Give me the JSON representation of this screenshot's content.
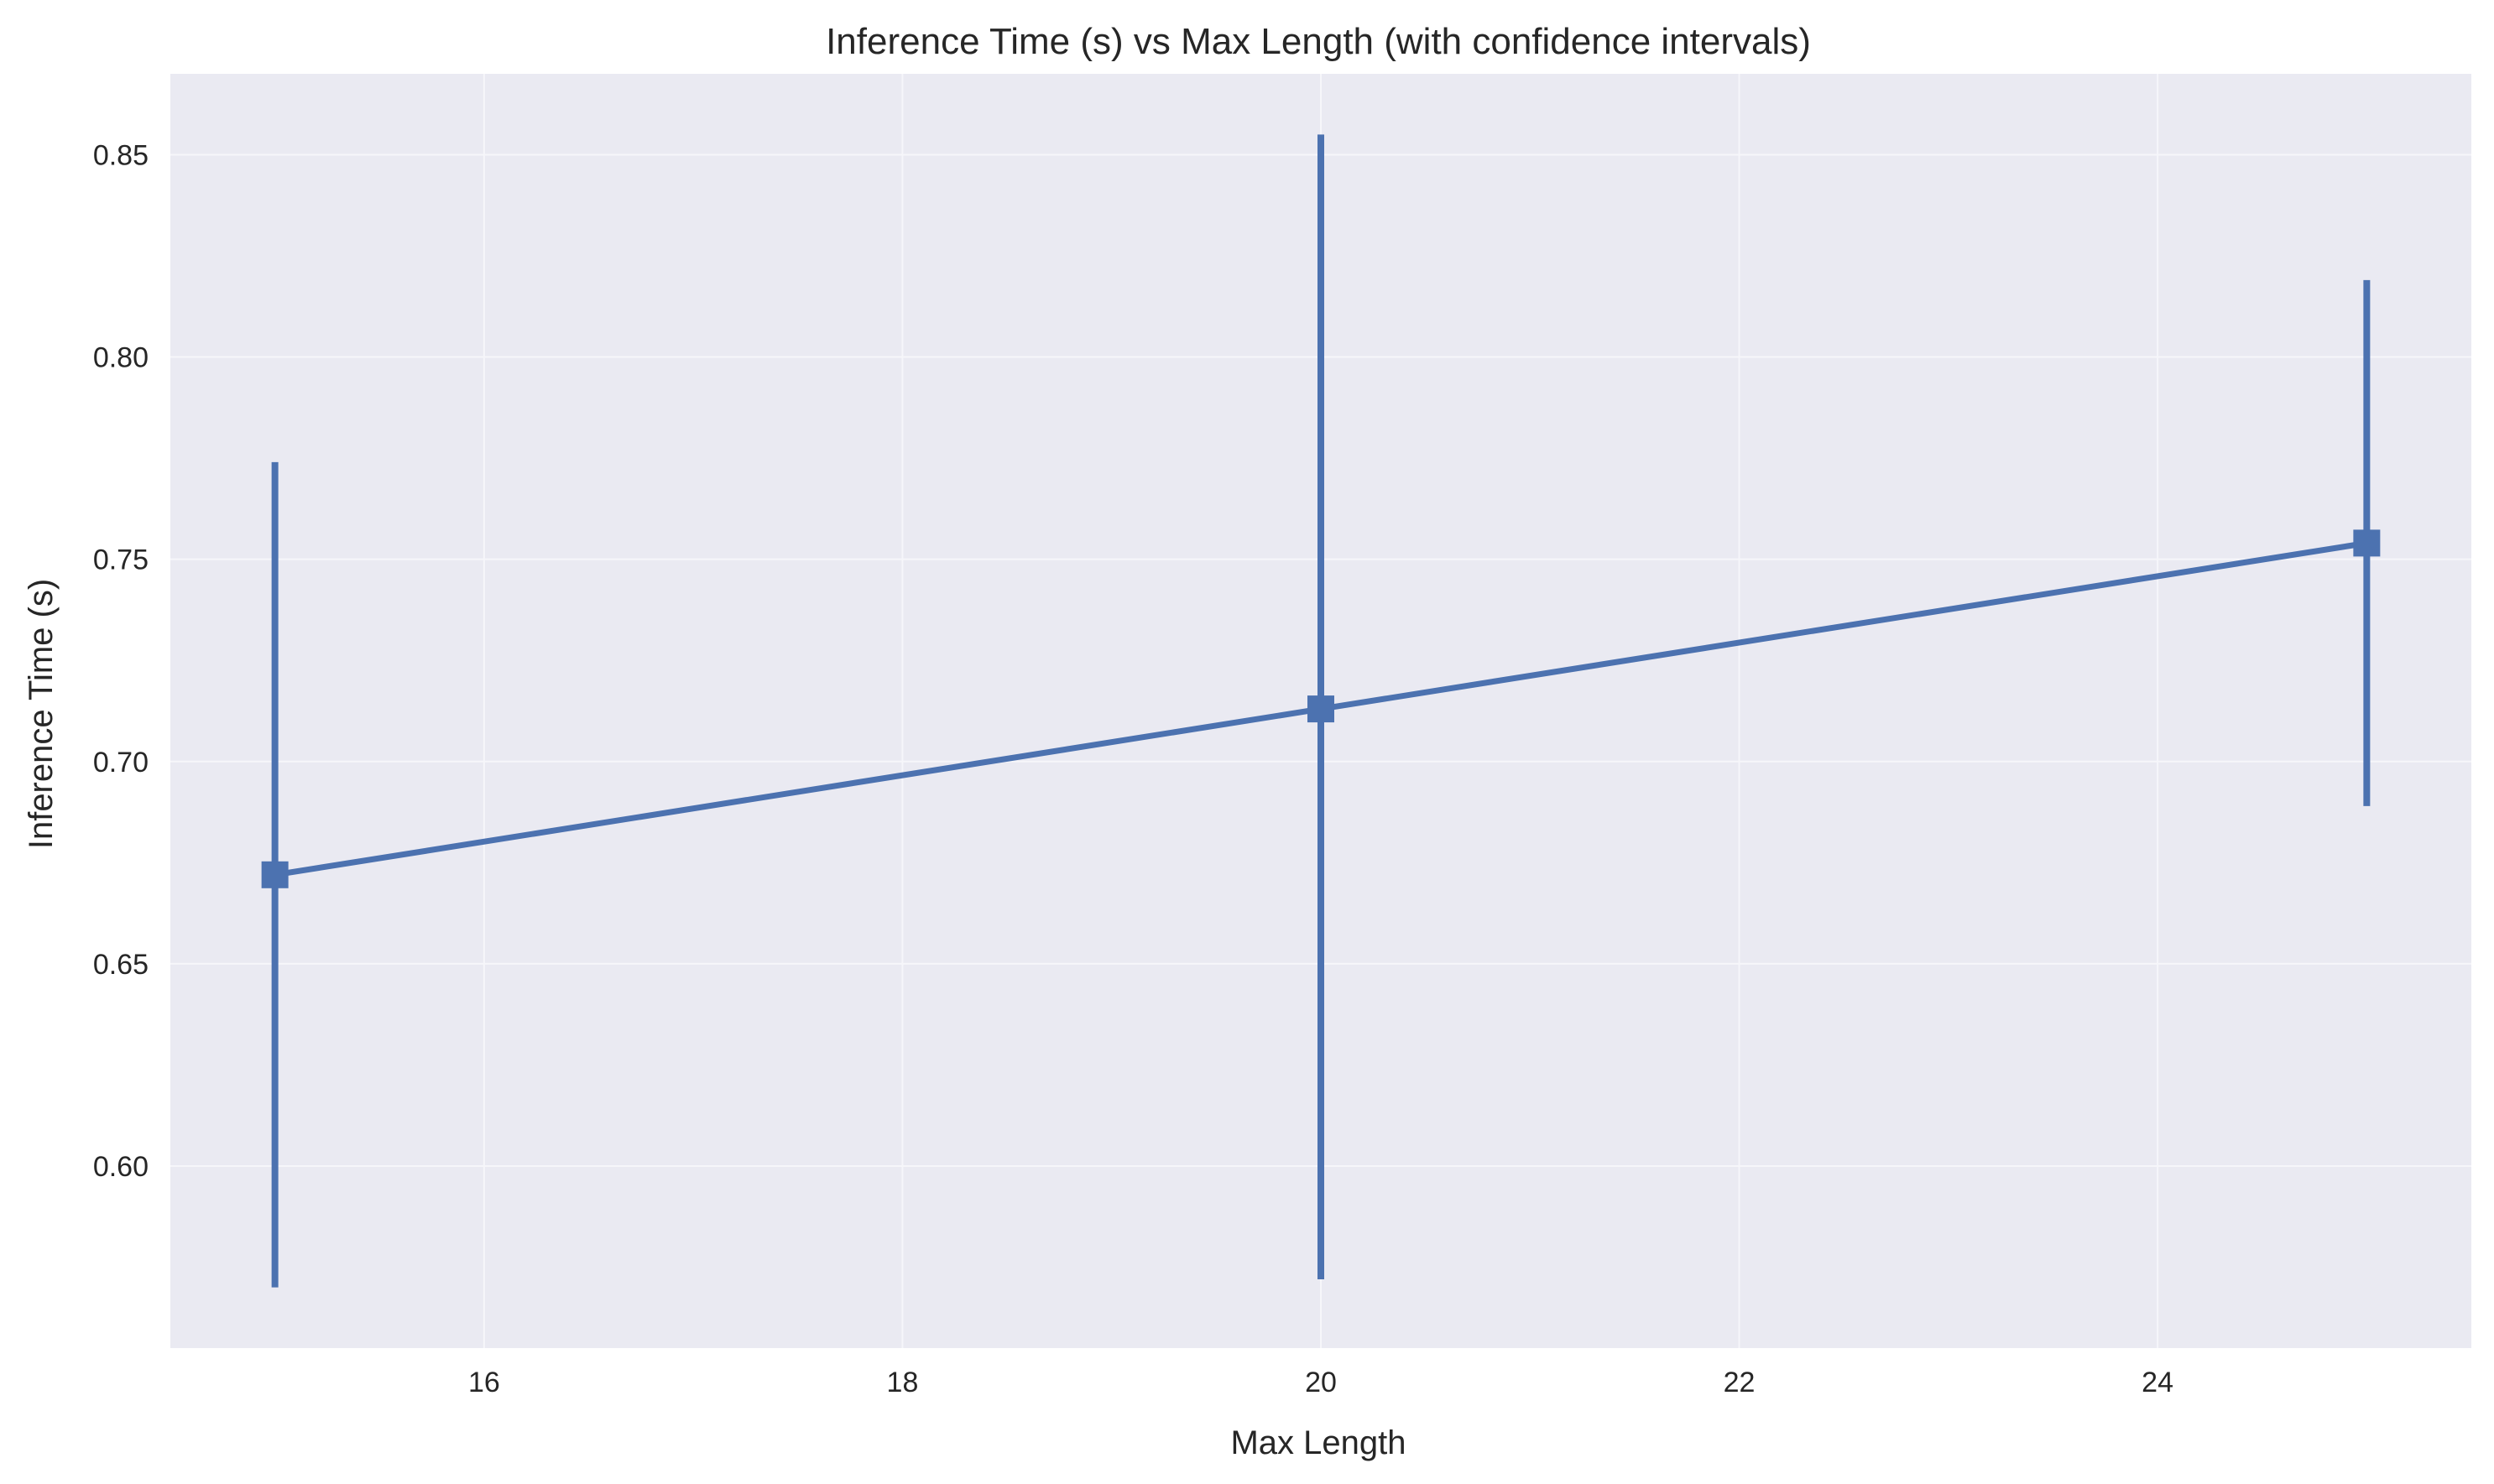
{
  "chart_data": {
    "type": "line",
    "title": "Inference Time (s) vs Max Length (with confidence intervals)",
    "xlabel": "Max Length",
    "ylabel": "Inference Time (s)",
    "xlim": [
      14.5,
      25.5
    ],
    "ylim": [
      0.555,
      0.87
    ],
    "xticks": [
      16,
      18,
      20,
      22,
      24
    ],
    "xtick_labels": [
      "16",
      "18",
      "20",
      "22",
      "24"
    ],
    "yticks": [
      0.6,
      0.65,
      0.7,
      0.75,
      0.8,
      0.85
    ],
    "ytick_labels": [
      "0.60",
      "0.65",
      "0.70",
      "0.75",
      "0.80",
      "0.85"
    ],
    "grid": true,
    "marker": "square",
    "series": [
      {
        "color": "#4c72b0",
        "points": [
          {
            "x": 15,
            "y": 0.672,
            "ci_low": 0.57,
            "ci_high": 0.774
          },
          {
            "x": 20,
            "y": 0.713,
            "ci_low": 0.572,
            "ci_high": 0.855
          },
          {
            "x": 25,
            "y": 0.754,
            "ci_low": 0.689,
            "ci_high": 0.819
          }
        ]
      }
    ],
    "colors": {
      "plot_background": "#eaeaf2",
      "grid": "#f6f6fa"
    }
  }
}
